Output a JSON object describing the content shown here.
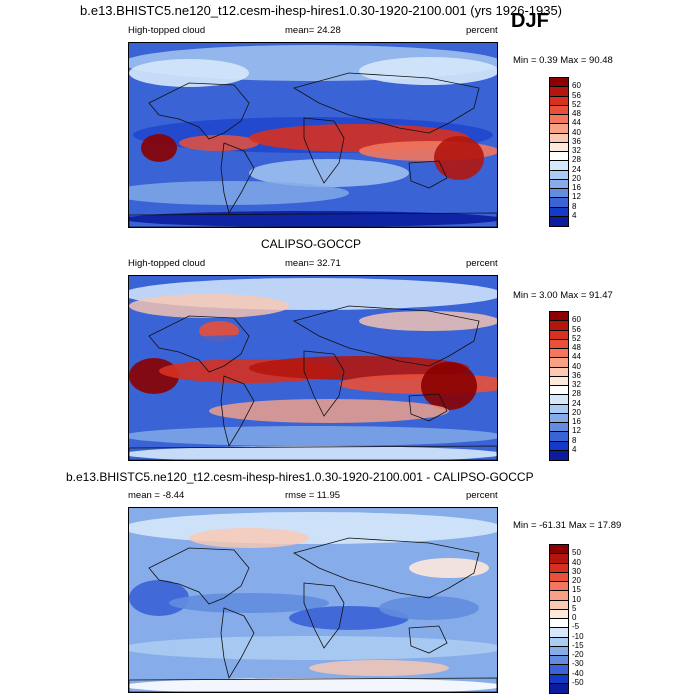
{
  "season": "DJF",
  "panels": [
    {
      "title": "b.e13.BHISTC5.ne120_t12.cesm-ihesp-hires1.0.30-1920-2100.001 (yrs 1926-1935)",
      "left_label": "High-topped cloud",
      "center_label": "mean=  24.28",
      "right_label": "percent",
      "minmax": "Min =   0.39 Max =  90.48",
      "colorbar": {
        "labels": [
          "60",
          "56",
          "52",
          "48",
          "44",
          "40",
          "36",
          "32",
          "28",
          "24",
          "20",
          "16",
          "12",
          "8",
          "4"
        ],
        "colors": [
          "#8b0000",
          "#b2160d",
          "#d63020",
          "#e8503a",
          "#f2775e",
          "#f8a285",
          "#fbc8b1",
          "#fde8dc",
          "#ffffff",
          "#d5e8fb",
          "#aacbf2",
          "#86ade9",
          "#628ddf",
          "#3a63d6",
          "#143bc8",
          "#0b1d9c"
        ]
      }
    },
    {
      "title": "CALIPSO-GOCCP",
      "left_label": "High-topped cloud",
      "center_label": "mean=  32.71",
      "right_label": "percent",
      "minmax": "Min =   3.00 Max =  91.47",
      "colorbar": {
        "labels": [
          "60",
          "56",
          "52",
          "48",
          "44",
          "40",
          "36",
          "32",
          "28",
          "24",
          "20",
          "16",
          "12",
          "8",
          "4"
        ],
        "colors": [
          "#8b0000",
          "#b2160d",
          "#d63020",
          "#e8503a",
          "#f2775e",
          "#f8a285",
          "#fbc8b1",
          "#fde8dc",
          "#ffffff",
          "#d5e8fb",
          "#aacbf2",
          "#86ade9",
          "#628ddf",
          "#3a63d6",
          "#143bc8",
          "#0b1d9c"
        ]
      }
    },
    {
      "title": "b.e13.BHISTC5.ne120_t12.cesm-ihesp-hires1.0.30-1920-2100.001 - CALIPSO-GOCCP",
      "left_label": "mean =  -8.44",
      "center_label": "rmse =  11.95",
      "right_label": "percent",
      "minmax": "Min = -61.31 Max =  17.89",
      "colorbar": {
        "labels": [
          "50",
          "40",
          "30",
          "20",
          "15",
          "10",
          "5",
          "0",
          "-5",
          "-10",
          "-15",
          "-20",
          "-30",
          "-40",
          "-50"
        ],
        "colors": [
          "#8b0000",
          "#b2160d",
          "#d63020",
          "#e8503a",
          "#f2775e",
          "#f8a285",
          "#fbc8b1",
          "#fde8dc",
          "#ffffff",
          "#d5e8fb",
          "#aacbf2",
          "#86ade9",
          "#628ddf",
          "#3a63d6",
          "#143bc8",
          "#0b1d9c"
        ]
      }
    }
  ]
}
